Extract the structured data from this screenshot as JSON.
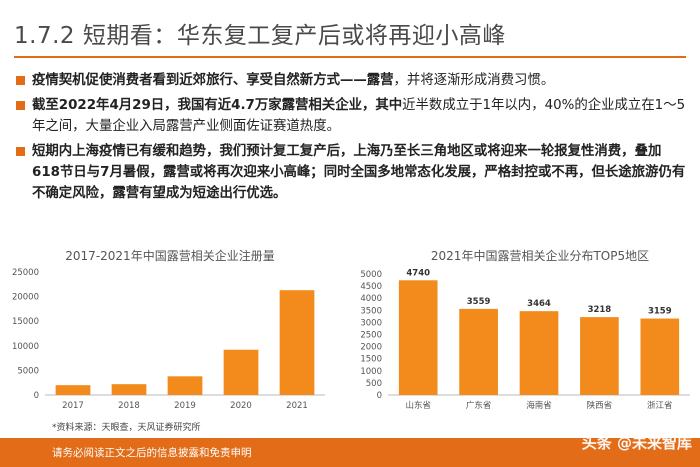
{
  "header": {
    "title": "1.7.2 短期看：华东复工复产后或将再迎小高峰"
  },
  "bullets": [
    {
      "bold": "疫情契机促使消费者看到近郊旅行、享受自然新方式——露营",
      "plain": "，并将逐渐形成消费习惯。"
    },
    {
      "parts": [
        {
          "b": true,
          "t": "截至2022年4月29日，我国有近4.7万家露营相关企业，其中"
        },
        {
          "b": false,
          "t": "近半数成立于1年以内，40%的企业成立在1～5年之间，大量企业入局露营产业侧面佐证赛道热度。"
        }
      ]
    },
    {
      "bold": "短期内上海疫情已有缓和趋势，我们预计复工复产后，上海乃至长三角地区或将迎来一轮报复性消费，叠加618节日与7月暑假，露营或将再次迎来小高峰；同时全国多地常态化发展，严格封控或不再，但长途旅游仍有不确定风险，露营有望成为短途出行优选。",
      "plain": ""
    }
  ],
  "chart_data": [
    {
      "type": "bar",
      "title": "2017-2021年中国露营相关企业注册量",
      "categories": [
        "2017",
        "2018",
        "2019",
        "2020",
        "2021"
      ],
      "values": [
        2000,
        2200,
        3800,
        9200,
        21300
      ],
      "ylim": [
        0,
        25000
      ],
      "yticks": [
        0,
        5000,
        10000,
        15000,
        20000,
        25000
      ],
      "color": "#f28a1c"
    },
    {
      "type": "bar",
      "title": "2021年中国露营相关企业分布TOP5地区",
      "categories": [
        "山东省",
        "广东省",
        "海南省",
        "陕西省",
        "浙江省"
      ],
      "values": [
        4740,
        3559,
        3464,
        3218,
        3159
      ],
      "ylim": [
        0,
        5000
      ],
      "yticks": [
        0,
        500,
        1000,
        1500,
        2000,
        2500,
        3000,
        3500,
        4000,
        4500,
        5000
      ],
      "data_labels": [
        "4740",
        "3559",
        "3464",
        "3218",
        "3159"
      ],
      "color": "#f28a1c"
    }
  ],
  "source": "*资料来源：天眼查，天风证券研究所",
  "footer": {
    "text": "请务必阅读正文之后的信息披露和免责申明"
  },
  "watermark": "头条 @未来智库"
}
